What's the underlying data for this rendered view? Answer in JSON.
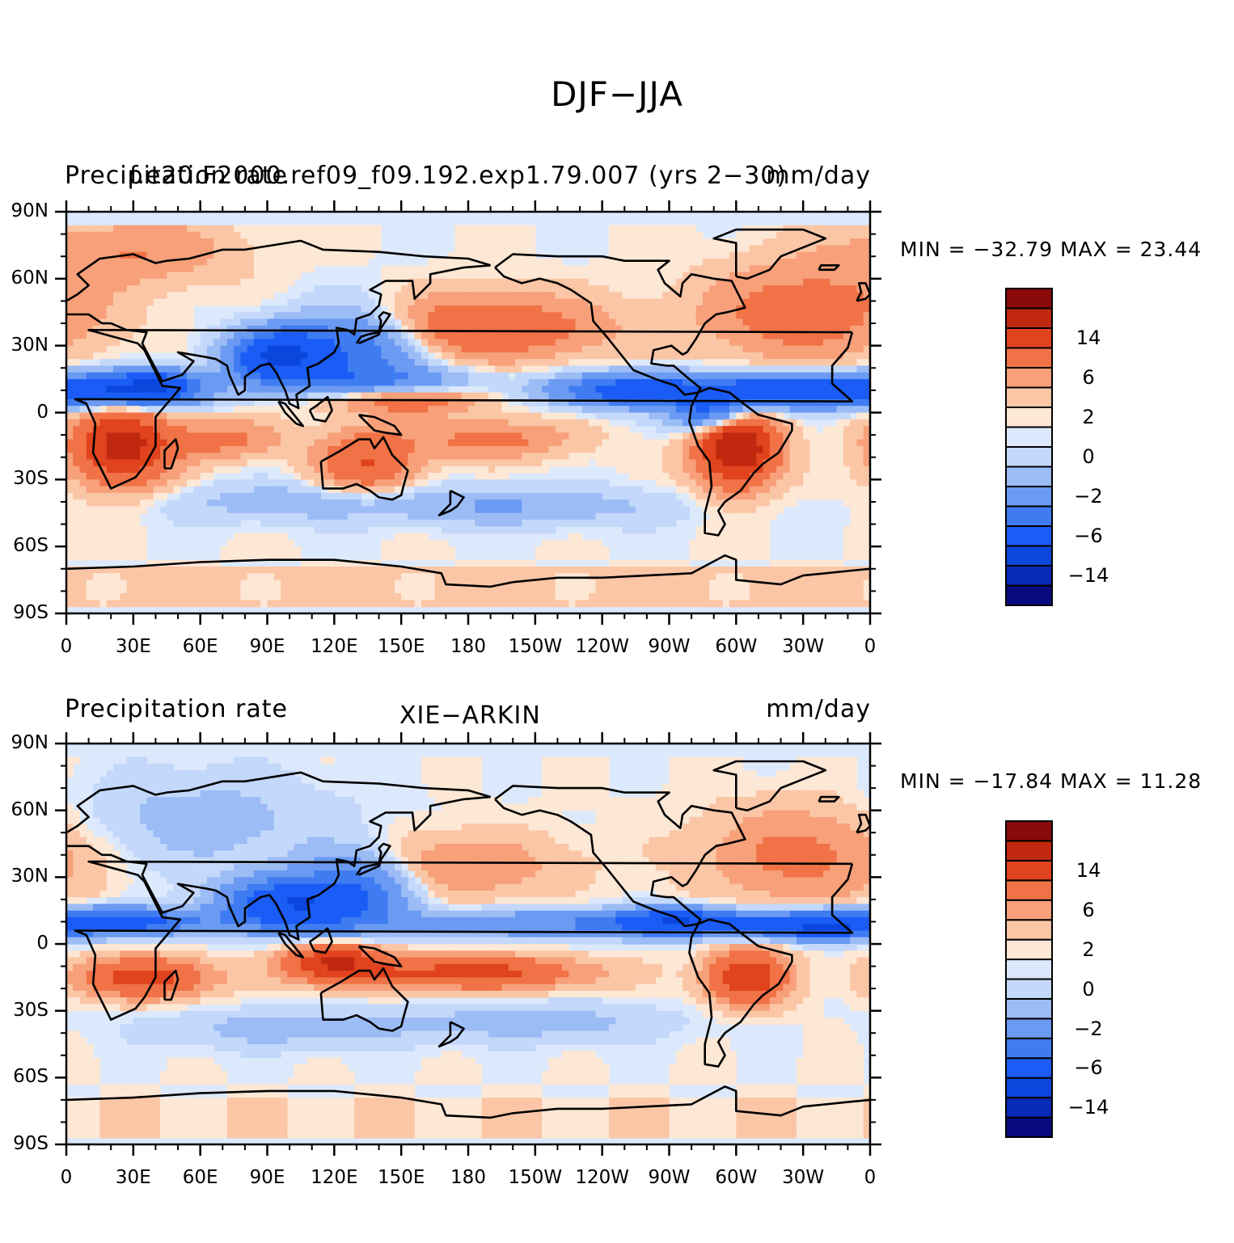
{
  "title": "DJF−JJA",
  "palette": [
    "#0a0a80",
    "#0a2ab8",
    "#0b46dd",
    "#1a5cf5",
    "#3f7cf2",
    "#6b9af2",
    "#9cbcf6",
    "#c3d8fa",
    "#dce9fc",
    "#fde7d5",
    "#fbc6a6",
    "#f7a07a",
    "#f07246",
    "#e0431d",
    "#c02810",
    "#8b0a0a"
  ],
  "panels": [
    {
      "id": "model",
      "left_title": "Precipitation rate",
      "center_title": "f.e20.F2000.ref09_f09.192.exp1.79.007 (yrs 2−30)",
      "right_title": "mm/day",
      "stats": "MIN = −32.79  MAX =   23.44",
      "field": "model"
    },
    {
      "id": "obs",
      "left_title": "Precipitation rate",
      "center_title": "XIE−ARKIN",
      "right_title": "mm/day",
      "stats": "MIN = −17.84  MAX =   11.28",
      "field": "obs"
    }
  ],
  "axes": {
    "lat_labels": [
      "90N",
      "60N",
      "30N",
      "0",
      "30S",
      "60S",
      "90S"
    ],
    "lon_labels": [
      "0",
      "30E",
      "60E",
      "90E",
      "120E",
      "150E",
      "180",
      "150W",
      "120W",
      "90W",
      "60W",
      "30W",
      "0"
    ]
  },
  "colorbar": {
    "labels": [
      "14",
      "6",
      "2",
      "0",
      "−2",
      "−6",
      "−14"
    ]
  }
}
